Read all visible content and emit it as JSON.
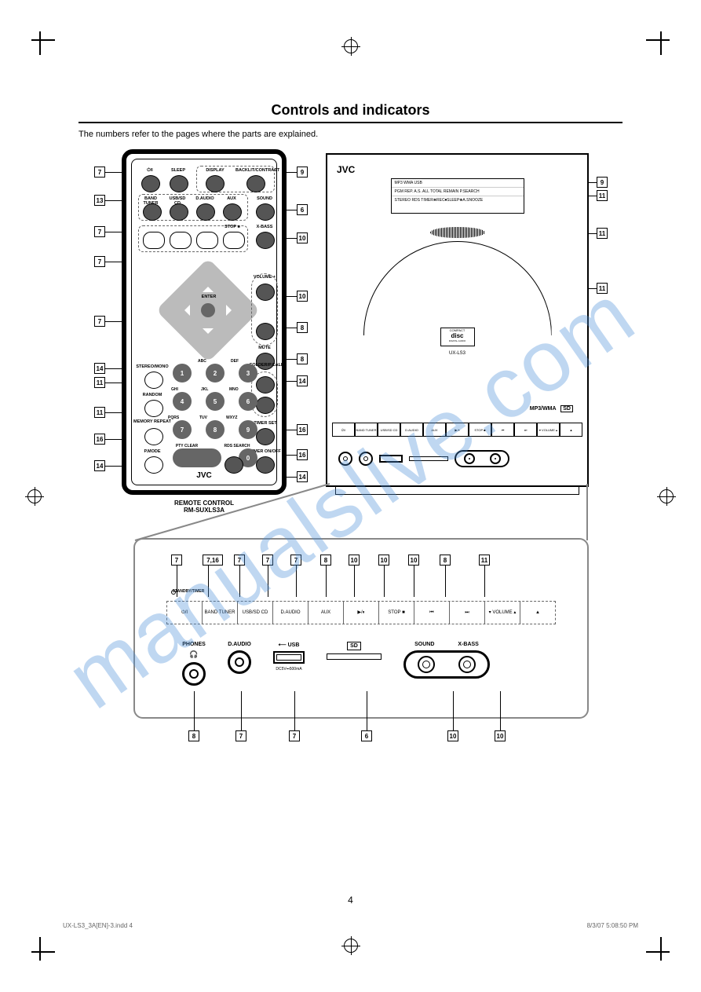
{
  "page": {
    "title": "Controls and indicators",
    "intro": "The numbers refer to the pages where the parts are explained.",
    "pageNumber": "4",
    "footerFile": "UX-LS3_3A[EN]-3.indd   4",
    "footerTime": "8/3/07   5:08:50 PM",
    "watermark": "manualslive.com"
  },
  "remote": {
    "brand": "JVC",
    "caption1": "REMOTE CONTROL",
    "model": "RM-SUXLS3A",
    "buttons": {
      "power": "⏻/I",
      "sleep": "SLEEP",
      "display": "DISPLAY",
      "contrast": "BACKLIT/CONTRAST",
      "bandTuner": "BAND TUNER",
      "usbSdCd": "USB/SD CD",
      "daudio": "D.AUDIO",
      "aux": "AUX",
      "sound": "SOUND",
      "prev": "⏮",
      "play": "▶/⏸",
      "next": "⏭",
      "stop": "STOP ■",
      "xbass": "X-BASS",
      "enter": "ENTER",
      "volPlus": "VOLUME +",
      "volMinus": "−",
      "mute": "MUTE",
      "stereoMono": "STEREO/MONO",
      "random": "RANDOM",
      "memoryRepeat": "MEMORY REPEAT",
      "pmode": "P.MODE",
      "ptyClear": "PTY CLEAR",
      "folderPcall": "FOLDER/P.CALL",
      "timerSet": "TIMER SET",
      "timerOnOff": "TIMER ON/OFF",
      "rdsSearch": "RDS SEARCH",
      "n1": "1",
      "n2": "2",
      "n3": "3",
      "n4": "4",
      "n5": "5",
      "n6": "6",
      "n7": "7",
      "n8": "8",
      "n9": "9",
      "n0": "0",
      "abc": "ABC",
      "def": "DEF",
      "ghi": "GHI",
      "jkl": "JKL",
      "mno": "MNO",
      "pqrs": "PQRS",
      "tuv": "TUV",
      "wxyz": "WXYZ"
    },
    "calloutsLeft": [
      "7",
      "13",
      "7",
      "7",
      "7",
      "14",
      "11",
      "11",
      "16",
      "14"
    ],
    "calloutsRight": [
      "9",
      "6",
      "10",
      "10",
      "8",
      "8",
      "14",
      "16",
      "16",
      "14"
    ]
  },
  "unit": {
    "brand": "JVC",
    "displayLines": [
      "MP3 WMA         USB",
      "PGM REP. A.S. ALL TOTAL REMAIN P.SEARCH",
      "STEREO RDS     TIMER❀REC⏺SLEEP❀A.SNOOZE"
    ],
    "cdLogoTop": "COMPACT",
    "cdLogoMain": "disc",
    "cdLogoSub": "DIGITAL AUDIO",
    "uxModel": "UX-LS3",
    "mp3wma": "MP3/WMA",
    "sdBadge": "SD",
    "calloutsRight": [
      "9",
      "11",
      "11",
      "11"
    ]
  },
  "panel": {
    "standbyTimer": "STANDBY/TIMER",
    "buttons": [
      "⏻/I",
      "BAND TUNER",
      "USB/SD CD",
      "D.AUDIO",
      "AUX",
      "▶/⏸",
      "STOP ■",
      "⏮",
      "⏭",
      "▾ VOLUME ▴",
      "▲"
    ],
    "lowerLabels": {
      "phones": "PHONES",
      "daudio": "D.AUDIO",
      "usb": "USB",
      "sound": "SOUND",
      "xbass": "X-BASS"
    }
  },
  "expanded": {
    "topCallouts": [
      "7",
      "7,16",
      "7",
      "7",
      "7",
      "8",
      "10",
      "10",
      "10",
      "8",
      "11"
    ],
    "bottomCallouts": [
      "8",
      "7",
      "7",
      "6",
      "10",
      "10"
    ],
    "usbIcon": "⟵ USB",
    "sdIcon": "SD"
  },
  "colors": {
    "ink": "#000000",
    "watermark": "#4a90d9",
    "panelBorder": "#888888",
    "buttonDark": "#555555",
    "dpad": "#bbbbbb"
  }
}
